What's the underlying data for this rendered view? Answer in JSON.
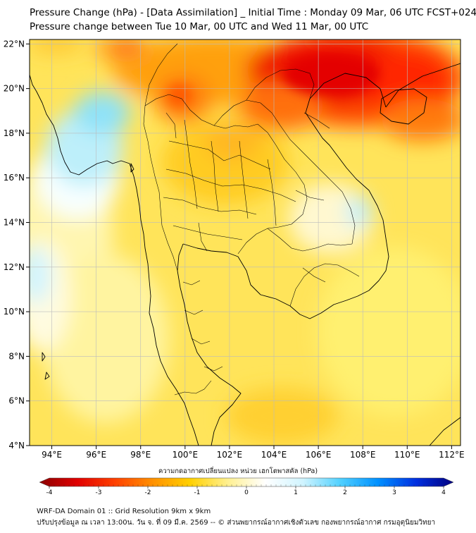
{
  "title_line1": "Pressure Change (hPa) - [Data Assimilation] _ Initial Time : Monday 09 Mar, 06 UTC FCST+024",
  "title_line2": "Pressure change between Tue 10 Mar, 00 UTC and Wed 11 Mar, 00 UTC",
  "lon_labels": [
    "94°E",
    "96°E",
    "98°E",
    "100°E",
    "102°E",
    "104°E",
    "106°E",
    "108°E",
    "110°E",
    "112°E"
  ],
  "lat_labels": [
    "22°N",
    "20°N",
    "18°N",
    "16°N",
    "14°N",
    "12°N",
    "10°N",
    "8°N",
    "6°N",
    "4°N"
  ],
  "lon_values": [
    94,
    96,
    98,
    100,
    102,
    104,
    106,
    108,
    110,
    112
  ],
  "lat_values": [
    22,
    20,
    18,
    16,
    14,
    12,
    10,
    8,
    6,
    4
  ],
  "extent": {
    "lon_min": 93.0,
    "lon_max": 112.4,
    "lat_min": 4.0,
    "lat_max": 22.2
  },
  "colorbar": {
    "title": "ความกดอากาศเปลี่ยนแปลง หน่วย เฮกโตพาสคัล (hPa)",
    "ticks": [
      "-4",
      "-3",
      "-2",
      "-1",
      "0",
      "1",
      "2",
      "3",
      "4"
    ],
    "tick_values": [
      -4,
      -3,
      -2,
      -1,
      0,
      1,
      2,
      3,
      4
    ],
    "min": -4,
    "max": 4,
    "colors_low_to_high": [
      "#8b0000",
      "#e00000",
      "#ff4000",
      "#ff9000",
      "#ffd000",
      "#fff090",
      "#ffffff",
      "#d0f4ff",
      "#50d0ff",
      "#0090ff",
      "#0030e0",
      "#000080"
    ]
  },
  "footer_line1": "WRF-DA Domain 01 :: Grid Resolution 9km x 9km",
  "footer_line2": "ปรับปรุงข้อมูล ณ เวลา 13:00น. วัน จ. ที่ 09 มี.ค. 2569 -- © ส่วนพยากรณ์อากาศเชิงตัวเลข กองพยากรณ์อากาศ กรมอุตุนิยมวิทยา",
  "colors": {
    "grid": "#bbbbbb",
    "coast": "#000000",
    "background_field": "#ffe45a"
  }
}
